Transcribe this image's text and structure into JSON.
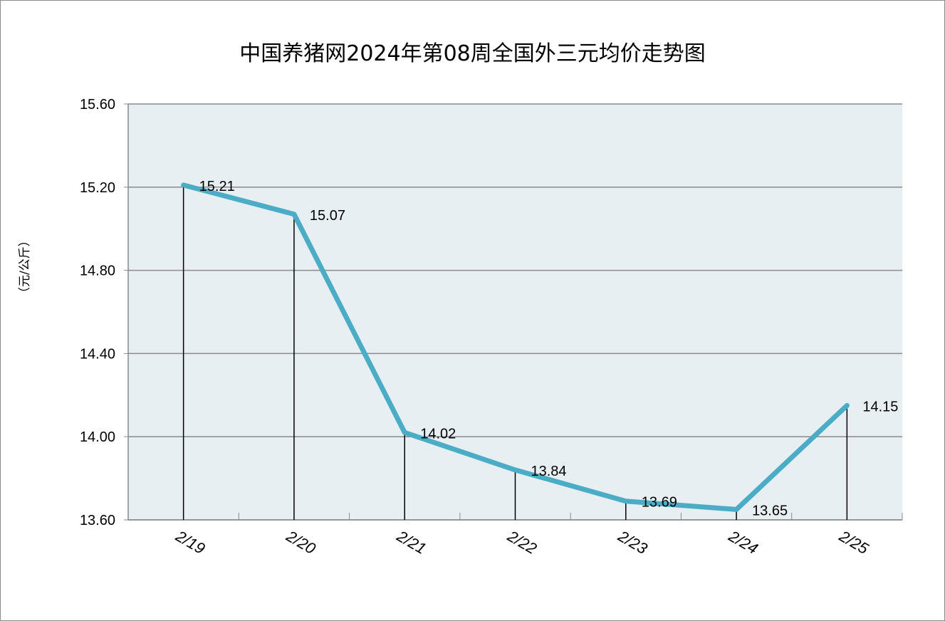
{
  "chart_data": {
    "type": "line",
    "title": "中国养猪网2024年第08周全国外三元均价走势图",
    "ylabel": "（元/公斤）",
    "xlabel": "",
    "categories": [
      "2/19",
      "2/20",
      "2/21",
      "2/22",
      "2/23",
      "2/24",
      "2/25"
    ],
    "values": [
      15.21,
      15.07,
      14.02,
      13.84,
      13.69,
      13.65,
      14.15
    ],
    "data_labels": [
      "15.21",
      "15.07",
      "14.02",
      "13.84",
      "13.69",
      "13.65",
      "14.15"
    ],
    "ylim": [
      13.6,
      15.6
    ],
    "yticks": [
      "13.60",
      "14.00",
      "14.40",
      "14.80",
      "15.20",
      "15.60"
    ],
    "grid": true,
    "drop_lines": true,
    "colors": {
      "line": "#4bacc6",
      "plot_bg": "#e8eff3",
      "grid": "#8a8a8a"
    }
  }
}
